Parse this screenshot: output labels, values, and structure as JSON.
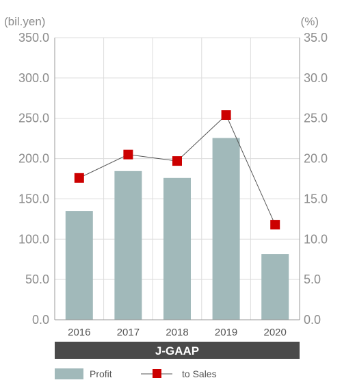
{
  "chart_data": {
    "type": "bar",
    "categories": [
      "2016",
      "2017",
      "2018",
      "2019",
      "2020"
    ],
    "series": [
      {
        "name": "Profit",
        "type": "bar",
        "axis": "left",
        "color": "#a1b9ba",
        "values": [
          135.0,
          184.5,
          176.0,
          225.5,
          81.5
        ]
      },
      {
        "name": "to Sales",
        "type": "line",
        "axis": "right",
        "color": "#cc0000",
        "line_color": "#555555",
        "values": [
          17.6,
          20.5,
          19.7,
          25.4,
          11.8
        ]
      }
    ],
    "y_left": {
      "unit": "(bil.yen)",
      "range": [
        0,
        350
      ],
      "ticks": [
        "0.0",
        "50.0",
        "100.0",
        "150.0",
        "200.0",
        "250.0",
        "300.0",
        "350.0"
      ]
    },
    "y_right": {
      "unit": "(%)",
      "range": [
        0,
        35
      ],
      "ticks": [
        "0.0",
        "5.0",
        "10.0",
        "15.0",
        "20.0",
        "25.0",
        "30.0",
        "35.0"
      ]
    },
    "band_label": "J-GAAP",
    "band_color": "#4a4a4a",
    "grid": true,
    "legend_position": "bottom-left"
  }
}
